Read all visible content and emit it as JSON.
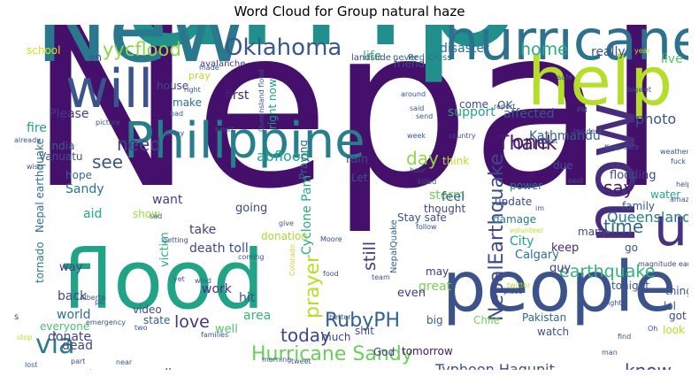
{
  "title": "Word Cloud for Group natural haze",
  "words": [
    {
      "text": "Nepal",
      "color": "#45106b"
    },
    {
      "text": "amp",
      "color": "#21908d"
    },
    {
      "text": "New",
      "color": "#2a788e"
    },
    {
      "text": "people",
      "color": "#3b528b"
    },
    {
      "text": "flood",
      "color": "#20a386"
    },
    {
      "text": "hurricane",
      "color": "#2c728e"
    },
    {
      "text": "help",
      "color": "#b5de2b"
    },
    {
      "text": "Philippine",
      "color": "#277f8e"
    },
    {
      "text": "will",
      "color": "#39558c"
    },
    {
      "text": "now",
      "color": "#472d7b"
    },
    {
      "text": "u",
      "color": "#46327e"
    },
    {
      "text": "Oklahoma",
      "color": "#38598c"
    },
    {
      "text": "yycflood",
      "color": "#8bd646"
    },
    {
      "text": "NepalEarthquake",
      "color": "#3e4989"
    },
    {
      "text": "earthquake",
      "color": "#2eb37c"
    },
    {
      "text": "Hurricane Sandy",
      "color": "#6ccd5a"
    },
    {
      "text": "RubyPH",
      "color": "#33638d"
    },
    {
      "text": "today",
      "color": "#404688"
    },
    {
      "text": "via",
      "color": "#287c8e"
    },
    {
      "text": "love",
      "color": "#46327e"
    },
    {
      "text": "prayer",
      "color": "#b8de29"
    },
    {
      "text": "still",
      "color": "#453781"
    },
    {
      "text": "Thank",
      "color": "#481b6d"
    },
    {
      "text": "home",
      "color": "#26ad81"
    },
    {
      "text": "one",
      "color": "#481f70"
    },
    {
      "text": "time",
      "color": "#31688e"
    },
    {
      "text": "see",
      "color": "#3b528b"
    },
    {
      "text": "need",
      "color": "#414487"
    },
    {
      "text": "day",
      "color": "#90d743"
    },
    {
      "text": "say",
      "color": "#481b6d"
    },
    {
      "text": "know",
      "color": "#3e4989"
    },
    {
      "text": "Typhoon Hagupit",
      "color": "#3b528b"
    },
    {
      "text": "Queensland",
      "color": "#2a788e"
    },
    {
      "text": "abflood",
      "color": "#22a884"
    },
    {
      "text": "Cyclone Pam",
      "color": "#25ac82"
    },
    {
      "text": "photo",
      "color": "#39568c"
    },
    {
      "text": "disaster",
      "color": "#2e6e8e"
    },
    {
      "text": "life",
      "color": "#37b878"
    },
    {
      "text": "affected",
      "color": "#38598c"
    },
    {
      "text": "support",
      "color": "#20a386"
    },
    {
      "text": "Kathmandu",
      "color": "#33638d"
    },
    {
      "text": "really",
      "color": "#3b528b"
    },
    {
      "text": "live",
      "color": "#54c568"
    },
    {
      "text": "friend",
      "color": "#3e4989"
    },
    {
      "text": "house",
      "color": "#3f4788"
    },
    {
      "text": "first",
      "color": "#482475"
    },
    {
      "text": "make",
      "color": "#2d708e"
    },
    {
      "text": "pray",
      "color": "#b5de2b"
    },
    {
      "text": "Please",
      "color": "#443a83"
    },
    {
      "text": "fire",
      "color": "#21a685"
    },
    {
      "text": "India",
      "color": "#355f8d"
    },
    {
      "text": "hope",
      "color": "#31688e"
    },
    {
      "text": "Vanuatu",
      "color": "#3a548c"
    },
    {
      "text": "Sandy",
      "color": "#2c738e"
    },
    {
      "text": "aid",
      "color": "#22a785"
    },
    {
      "text": "want",
      "color": "#433e85"
    },
    {
      "text": "show",
      "color": "#a0da39"
    },
    {
      "text": "victim",
      "color": "#29af7f"
    },
    {
      "text": "going",
      "color": "#3e4a89"
    },
    {
      "text": "donation",
      "color": "#a8db34"
    },
    {
      "text": "take",
      "color": "#433e85"
    },
    {
      "text": "death toll",
      "color": "#3f4788"
    },
    {
      "text": "work",
      "color": "#46307e"
    },
    {
      "text": "hit",
      "color": "#3b528b"
    },
    {
      "text": "video",
      "color": "#3e4c8a"
    },
    {
      "text": "state",
      "color": "#365c8d"
    },
    {
      "text": "area",
      "color": "#35b779"
    },
    {
      "text": "well",
      "color": "#50c46a"
    },
    {
      "text": "world",
      "color": "#2e6f8e"
    },
    {
      "text": "everyone",
      "color": "#4ac16d"
    },
    {
      "text": "donate",
      "color": "#424186"
    },
    {
      "text": "dead",
      "color": "#414487"
    },
    {
      "text": "back",
      "color": "#3f4788"
    },
    {
      "text": "way",
      "color": "#433e85"
    },
    {
      "text": "tornado",
      "color": "#287c8e"
    },
    {
      "text": "Nepal earthquake",
      "color": "#2d708e"
    },
    {
      "text": "school",
      "color": "#d2e21b"
    },
    {
      "text": "en",
      "color": "#3a548c"
    },
    {
      "text": "Red Cross",
      "color": "#2c728e"
    },
    {
      "text": "landslide",
      "color": "#404688"
    },
    {
      "text": "never",
      "color": "#355f8d"
    },
    {
      "text": "avalanche",
      "color": "#443983"
    },
    {
      "text": "right now",
      "color": "#1f9e89"
    },
    {
      "text": "rain",
      "color": "#3f4788"
    },
    {
      "text": "Let",
      "color": "#3b528b"
    },
    {
      "text": "Praying",
      "color": "#33638d"
    },
    {
      "text": "storm",
      "color": "#6ece58"
    },
    {
      "text": "thought",
      "color": "#3f4788"
    },
    {
      "text": "think",
      "color": "#bddf26"
    },
    {
      "text": "feel",
      "color": "#32648e"
    },
    {
      "text": "come",
      "color": "#404688"
    },
    {
      "text": "OK",
      "color": "#3b528b"
    },
    {
      "text": "due",
      "color": "#3a548c"
    },
    {
      "text": "power",
      "color": "#2a768e"
    },
    {
      "text": "update",
      "color": "#3d4d8a"
    },
    {
      "text": "damage",
      "color": "#2a788e"
    },
    {
      "text": "City",
      "color": "#20a486"
    },
    {
      "text": "Calgary",
      "color": "#2c728e"
    },
    {
      "text": "Stay safe",
      "color": "#3b528b"
    },
    {
      "text": "keep",
      "color": "#472a7a"
    },
    {
      "text": "guy",
      "color": "#433e85"
    },
    {
      "text": "may",
      "color": "#453781"
    },
    {
      "text": "great",
      "color": "#7ad151"
    },
    {
      "text": "even",
      "color": "#443983"
    },
    {
      "text": "big",
      "color": "#355e8d"
    },
    {
      "text": "Pakistan",
      "color": "#2f6b8e"
    },
    {
      "text": "Chile",
      "color": "#75d054"
    },
    {
      "text": "watch",
      "color": "#3b528b"
    },
    {
      "text": "shit",
      "color": "#3b528b"
    },
    {
      "text": "tomorrow",
      "color": "#481467"
    },
    {
      "text": "God",
      "color": "#453882"
    },
    {
      "text": "flooding",
      "color": "#3f4788"
    },
    {
      "text": "family",
      "color": "#3a548c"
    },
    {
      "text": "water",
      "color": "#22a884"
    },
    {
      "text": "many",
      "color": "#3f4788"
    },
    {
      "text": "go",
      "color": "#3b528b"
    },
    {
      "text": "tonight",
      "color": "#3b528b"
    },
    {
      "text": "thing",
      "color": "#39568c"
    },
    {
      "text": "lol",
      "color": "#3b528b"
    },
    {
      "text": "got",
      "color": "#404688"
    },
    {
      "text": "look",
      "color": "#b5de2b"
    },
    {
      "text": "much",
      "color": "#414487"
    },
    {
      "text": "call",
      "color": "#3b528b"
    },
    {
      "text": "Australia",
      "color": "#a5db36"
    },
    {
      "text": "good",
      "color": "#3e4989"
    },
    {
      "text": "Keep safe",
      "color": "#3b528b"
    },
    {
      "text": "magnitude earthquake",
      "color": "#3e4989"
    },
    {
      "text": "Hurricane Odile",
      "color": "#6ece58"
    },
    {
      "text": "Oklahoma tornado",
      "color": "#3b528b"
    },
    {
      "text": "NepalQuake",
      "color": "#32648e"
    },
    {
      "text": "Colorado",
      "color": "#bddf26"
    },
    {
      "text": "Moore",
      "color": "#3e4989"
    },
    {
      "text": "Queensland flood",
      "color": "#3b528b"
    },
    {
      "text": "made",
      "color": "#3b528b"
    },
    {
      "text": "right",
      "color": "#3b528b"
    },
    {
      "text": "bad",
      "color": "#3b528b"
    },
    {
      "text": "picture",
      "color": "#3b528b"
    },
    {
      "text": "heart",
      "color": "#3b528b"
    },
    {
      "text": "alway",
      "color": "#3b528b"
    },
    {
      "text": "already",
      "color": "#3b528b"
    },
    {
      "text": "wish",
      "color": "#3b528b"
    },
    {
      "text": "around",
      "color": "#3b528b"
    },
    {
      "text": "said",
      "color": "#3b528b"
    },
    {
      "text": "send",
      "color": "#3b528b"
    },
    {
      "text": "report",
      "color": "#3b528b"
    },
    {
      "text": "week",
      "color": "#3b528b"
    },
    {
      "text": "country",
      "color": "#3b528b"
    },
    {
      "text": "least",
      "color": "#3b528b"
    },
    {
      "text": "resident",
      "color": "#3b528b"
    },
    {
      "text": "PM",
      "color": "#3b528b"
    },
    {
      "text": "bigwet",
      "color": "#3b528b"
    },
    {
      "text": "safe",
      "color": "#3b528b"
    },
    {
      "text": "year",
      "color": "#bddf26"
    },
    {
      "text": "weather",
      "color": "#3b528b"
    },
    {
      "text": "fuck",
      "color": "#3b528b"
    },
    {
      "text": "helping",
      "color": "#3b528b"
    },
    {
      "text": "amazing",
      "color": "#3b528b"
    },
    {
      "text": "best",
      "color": "#3b528b"
    },
    {
      "text": "hour",
      "color": "#3b528b"
    },
    {
      "text": "killed",
      "color": "#3b528b"
    },
    {
      "text": "im",
      "color": "#3b528b"
    },
    {
      "text": "follow",
      "color": "#3b528b"
    },
    {
      "text": "volunteer",
      "color": "#bddf26"
    },
    {
      "text": "sad",
      "color": "#3b528b"
    },
    {
      "text": "getting",
      "color": "#3b528b"
    },
    {
      "text": "coming",
      "color": "#3b528b"
    },
    {
      "text": "give",
      "color": "#3b528b"
    },
    {
      "text": "pic",
      "color": "#3b528b"
    },
    {
      "text": "Alberta",
      "color": "#3b528b"
    },
    {
      "text": "yet",
      "color": "#3b528b"
    },
    {
      "text": "wind",
      "color": "#3b528b"
    },
    {
      "text": "food",
      "color": "#3b528b"
    },
    {
      "text": "team",
      "color": "#3b528b"
    },
    {
      "text": "twitter",
      "color": "#bddf26"
    },
    {
      "text": "place",
      "color": "#3b528b"
    },
    {
      "text": "night",
      "color": "#3b528b"
    },
    {
      "text": "Oh",
      "color": "#3b528b"
    },
    {
      "text": "emergency",
      "color": "#3b528b"
    },
    {
      "text": "families",
      "color": "#3b528b"
    },
    {
      "text": "better",
      "color": "#3b528b"
    },
    {
      "text": "two",
      "color": "#3b528b"
    },
    {
      "text": "stop",
      "color": "#bddf26"
    },
    {
      "text": "part",
      "color": "#3b528b"
    },
    {
      "text": "near",
      "color": "#3b528b"
    },
    {
      "text": "morning",
      "color": "#3b528b"
    },
    {
      "text": "tweet",
      "color": "#3b528b"
    },
    {
      "text": "lost",
      "color": "#3b528b"
    },
    {
      "text": "girl",
      "color": "#3b528b"
    },
    {
      "text": "another",
      "color": "#3b528b"
    },
    {
      "text": "latest",
      "color": "#3b528b"
    },
    {
      "text": "man",
      "color": "#3b528b"
    },
    {
      "text": "find",
      "color": "#3b528b"
    },
    {
      "text": "someone",
      "color": "#3b528b"
    },
    {
      "text": "s",
      "color": "#3b528b"
    }
  ]
}
